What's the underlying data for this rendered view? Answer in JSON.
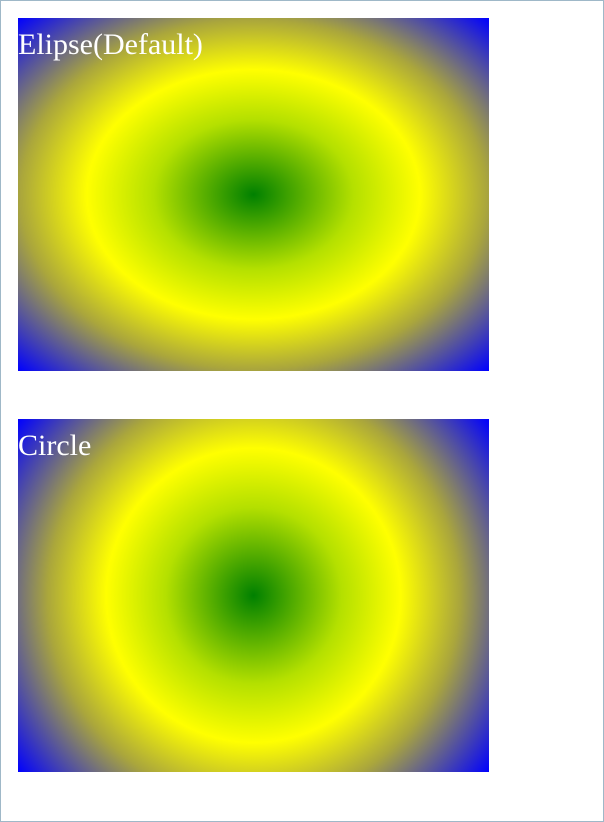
{
  "demos": [
    {
      "label": "Elipse(Default)",
      "shape": "ellipse",
      "colors": [
        "#008000",
        "#ffff00",
        "#0000ff"
      ]
    },
    {
      "label": "Circle",
      "shape": "circle",
      "colors": [
        "#008000",
        "#ffff00",
        "#0000ff"
      ]
    }
  ]
}
